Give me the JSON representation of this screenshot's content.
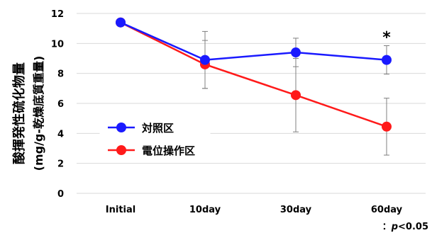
{
  "chart_data": {
    "type": "line",
    "categories": [
      "Initial",
      "10day",
      "30day",
      "60day"
    ],
    "ylabel_line1": "酸揮発性硫化物量",
    "ylabel_line2": "(mg/g-乾燥底質重量)",
    "xlabel": "",
    "ylim": [
      0,
      12
    ],
    "yticks": [
      0,
      2,
      4,
      6,
      8,
      10,
      12
    ],
    "grid": true,
    "legend_position": "left",
    "series": [
      {
        "name": "対照区",
        "color": "#1a1aff",
        "values": [
          11.4,
          8.9,
          9.4,
          8.9
        ],
        "errors": [
          0,
          1.9,
          0.95,
          0.95
        ]
      },
      {
        "name": "電位操作区",
        "color": "#ff1a1a",
        "values": [
          11.4,
          8.6,
          6.55,
          4.45
        ],
        "errors": [
          0,
          1.6,
          2.45,
          1.9
        ]
      }
    ],
    "annotations": [
      {
        "category": "60day",
        "text": "*"
      }
    ],
    "footnote_prefix": "：",
    "footnote_p": "p",
    "footnote_rest": "<0.05"
  }
}
